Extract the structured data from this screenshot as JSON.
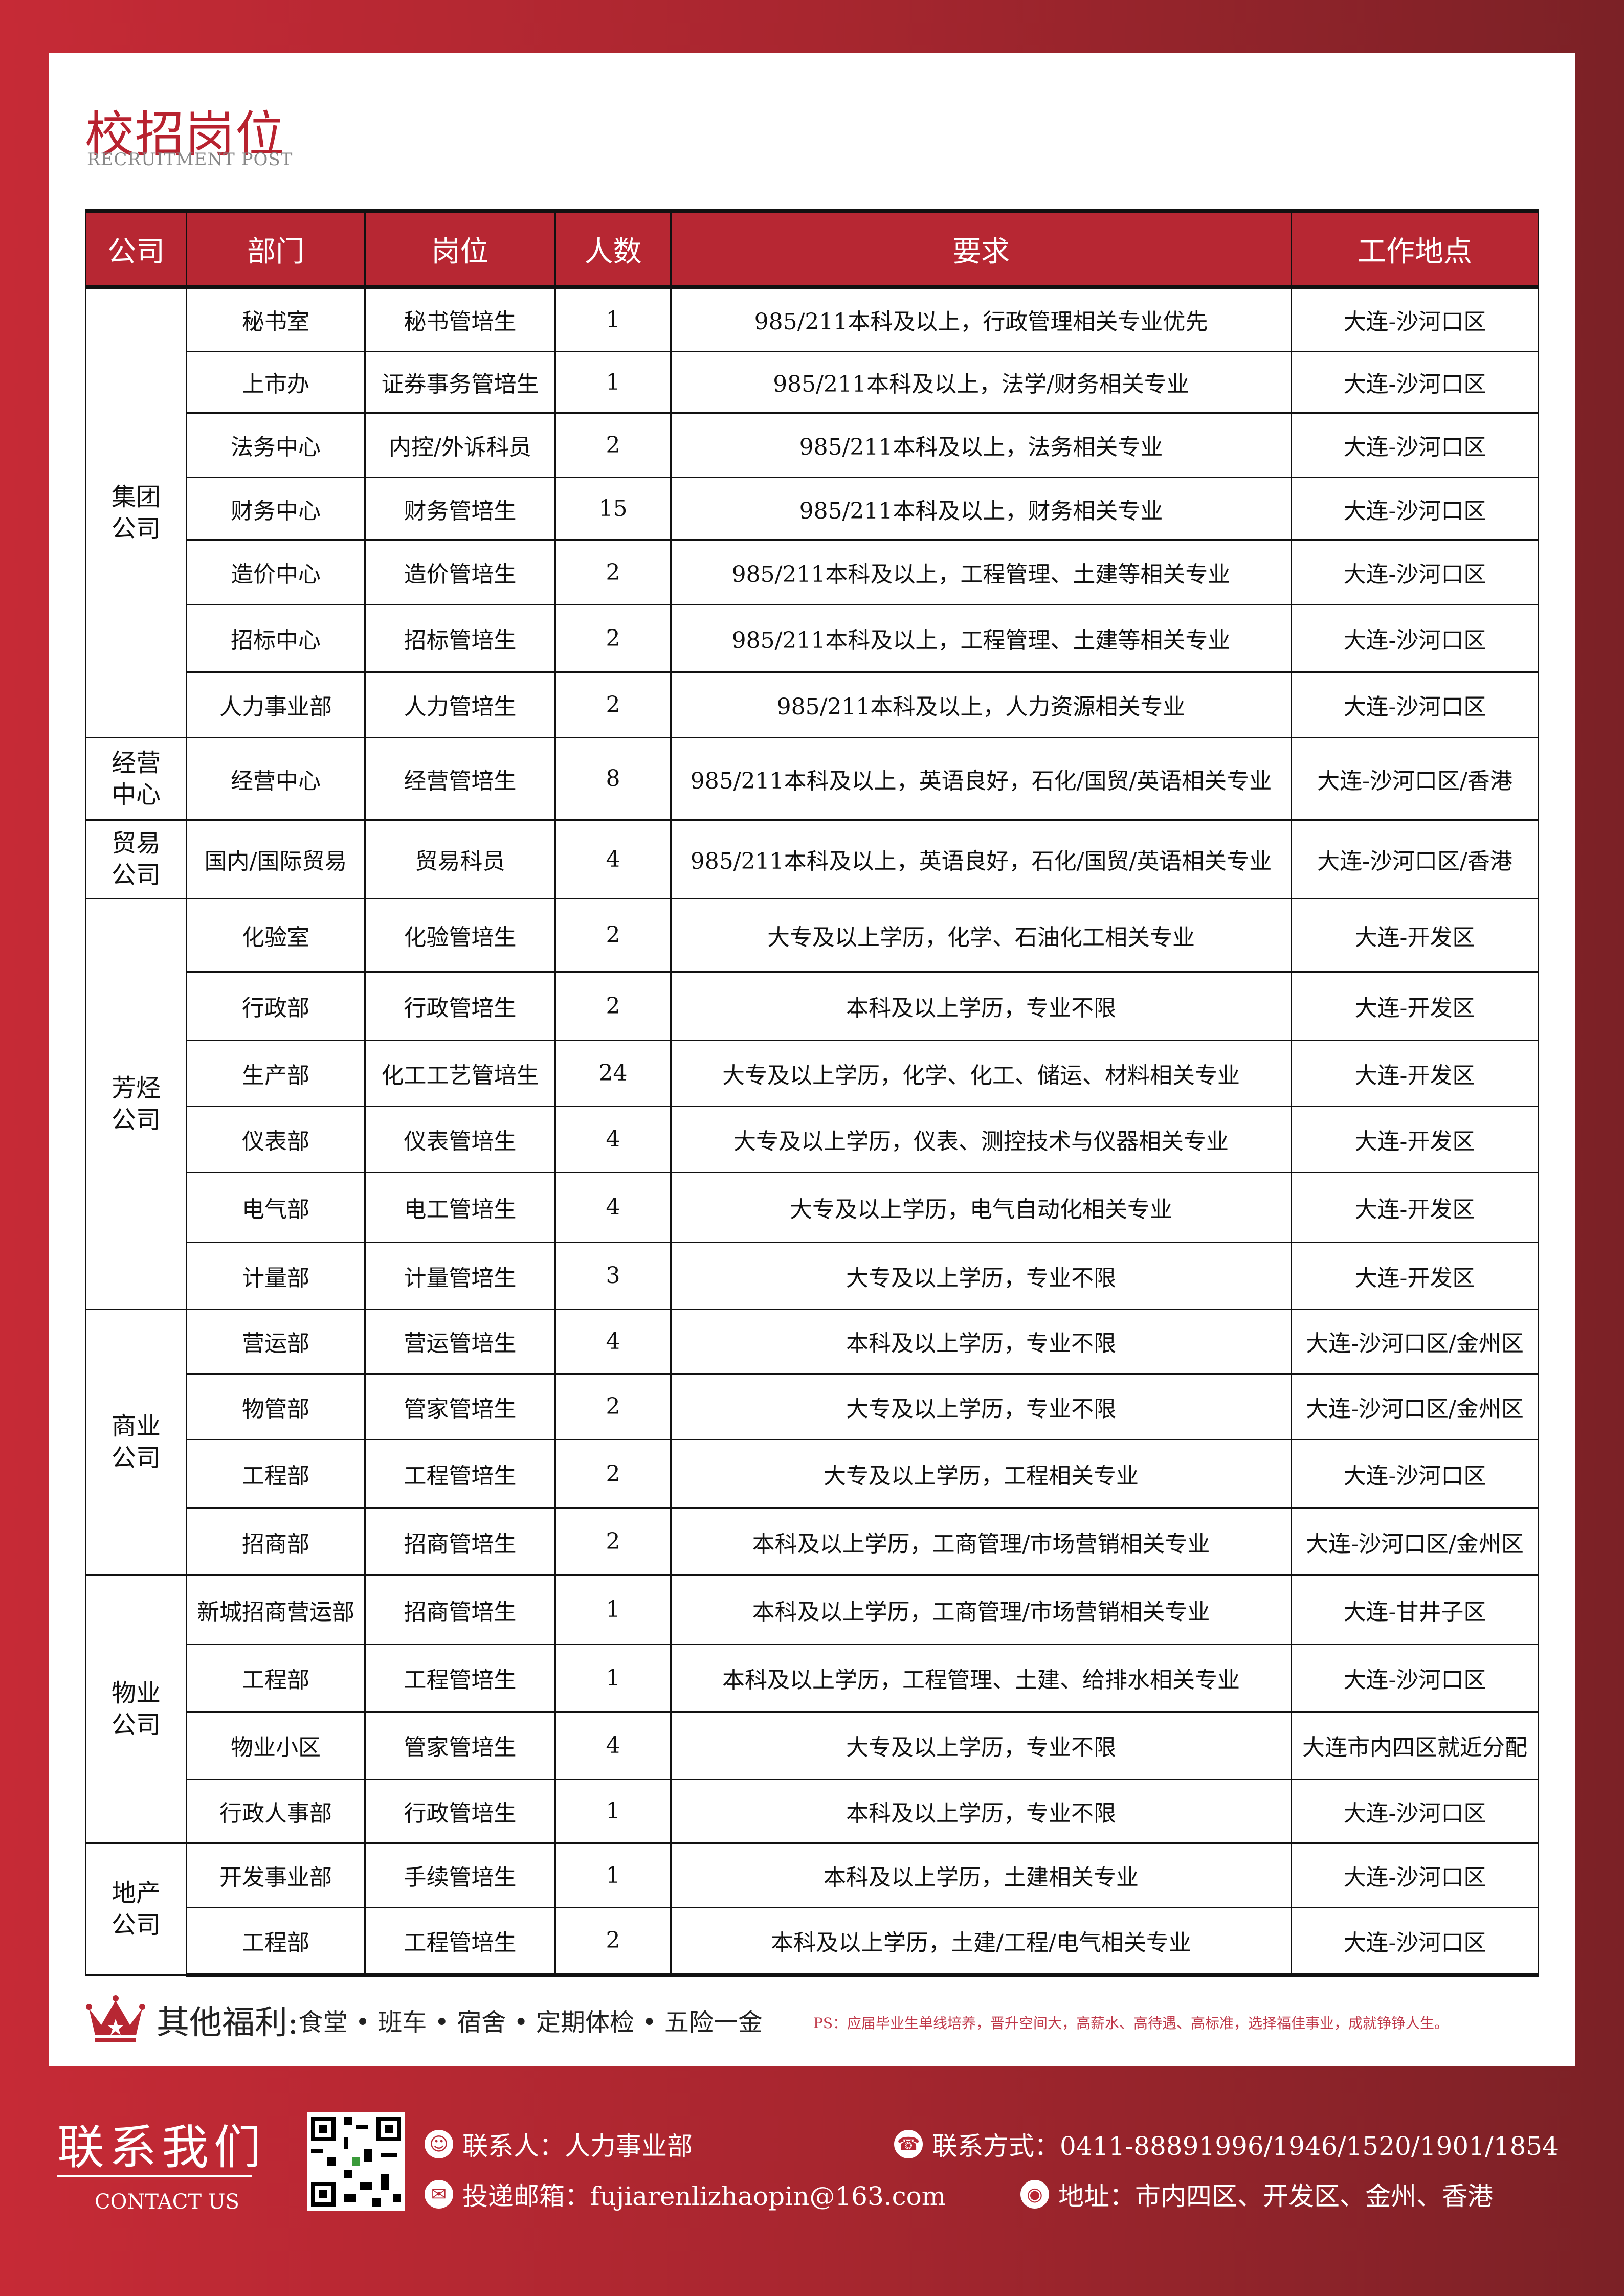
{
  "header": {
    "title": "校招岗位",
    "subtitle": "RECRUITMENT POST"
  },
  "colors": {
    "brand_red": "#b72733",
    "background_left": "#c62a36",
    "background_right": "#7b2126"
  },
  "table": {
    "headers": [
      "公司",
      "部门",
      "岗位",
      "人数",
      "要求",
      "工作地点"
    ],
    "groups": [
      {
        "company": "集团\n公司",
        "rows": [
          {
            "dept": "秘书室",
            "position": "秘书管培生",
            "count": "1",
            "requirement": "985/211本科及以上，行政管理相关专业优先",
            "location": "大连-沙河口区"
          },
          {
            "dept": "上市办",
            "position": "证券事务管培生",
            "count": "1",
            "requirement": "985/211本科及以上，法学/财务相关专业",
            "location": "大连-沙河口区"
          },
          {
            "dept": "法务中心",
            "position": "内控/外诉科员",
            "count": "2",
            "requirement": "985/211本科及以上，法务相关专业",
            "location": "大连-沙河口区"
          },
          {
            "dept": "财务中心",
            "position": "财务管培生",
            "count": "15",
            "requirement": "985/211本科及以上，财务相关专业",
            "location": "大连-沙河口区"
          },
          {
            "dept": "造价中心",
            "position": "造价管培生",
            "count": "2",
            "requirement": "985/211本科及以上，工程管理、土建等相关专业",
            "location": "大连-沙河口区"
          },
          {
            "dept": "招标中心",
            "position": "招标管培生",
            "count": "2",
            "requirement": "985/211本科及以上，工程管理、土建等相关专业",
            "location": "大连-沙河口区"
          },
          {
            "dept": "人力事业部",
            "position": "人力管培生",
            "count": "2",
            "requirement": "985/211本科及以上，人力资源相关专业",
            "location": "大连-沙河口区"
          }
        ]
      },
      {
        "company": "经营\n中心",
        "rows": [
          {
            "dept": "经营中心",
            "position": "经营管培生",
            "count": "8",
            "requirement": "985/211本科及以上，英语良好，石化/国贸/英语相关专业",
            "location": "大连-沙河口区/香港"
          }
        ]
      },
      {
        "company": "贸易\n公司",
        "rows": [
          {
            "dept": "国内/国际贸易",
            "position": "贸易科员",
            "count": "4",
            "requirement": "985/211本科及以上，英语良好，石化/国贸/英语相关专业",
            "location": "大连-沙河口区/香港"
          }
        ]
      },
      {
        "company": "芳烃\n公司",
        "rows": [
          {
            "dept": "化验室",
            "position": "化验管培生",
            "count": "2",
            "requirement": "大专及以上学历，化学、石油化工相关专业",
            "location": "大连-开发区"
          },
          {
            "dept": "行政部",
            "position": "行政管培生",
            "count": "2",
            "requirement": "本科及以上学历，专业不限",
            "location": "大连-开发区"
          },
          {
            "dept": "生产部",
            "position": "化工工艺管培生",
            "count": "24",
            "requirement": "大专及以上学历，化学、化工、储运、材料相关专业",
            "location": "大连-开发区"
          },
          {
            "dept": "仪表部",
            "position": "仪表管培生",
            "count": "4",
            "requirement": "大专及以上学历，仪表、测控技术与仪器相关专业",
            "location": "大连-开发区"
          },
          {
            "dept": "电气部",
            "position": "电工管培生",
            "count": "4",
            "requirement": "大专及以上学历，电气自动化相关专业",
            "location": "大连-开发区"
          },
          {
            "dept": "计量部",
            "position": "计量管培生",
            "count": "3",
            "requirement": "大专及以上学历，专业不限",
            "location": "大连-开发区"
          }
        ]
      },
      {
        "company": "商业\n公司",
        "rows": [
          {
            "dept": "营运部",
            "position": "营运管培生",
            "count": "4",
            "requirement": "本科及以上学历，专业不限",
            "location": "大连-沙河口区/金州区"
          },
          {
            "dept": "物管部",
            "position": "管家管培生",
            "count": "2",
            "requirement": "大专及以上学历，专业不限",
            "location": "大连-沙河口区/金州区"
          },
          {
            "dept": "工程部",
            "position": "工程管培生",
            "count": "2",
            "requirement": "大专及以上学历，工程相关专业",
            "location": "大连-沙河口区"
          },
          {
            "dept": "招商部",
            "position": "招商管培生",
            "count": "2",
            "requirement": "本科及以上学历，工商管理/市场营销相关专业",
            "location": "大连-沙河口区/金州区"
          }
        ]
      },
      {
        "company": "物业\n公司",
        "rows": [
          {
            "dept": "新城招商营运部",
            "position": "招商管培生",
            "count": "1",
            "requirement": "本科及以上学历，工商管理/市场营销相关专业",
            "location": "大连-甘井子区"
          },
          {
            "dept": "工程部",
            "position": "工程管培生",
            "count": "1",
            "requirement": "本科及以上学历，工程管理、土建、给排水相关专业",
            "location": "大连-沙河口区"
          },
          {
            "dept": "物业小区",
            "position": "管家管培生",
            "count": "4",
            "requirement": "大专及以上学历，专业不限",
            "location": "大连市内四区就近分配"
          },
          {
            "dept": "行政人事部",
            "position": "行政管培生",
            "count": "1",
            "requirement": "本科及以上学历，专业不限",
            "location": "大连-沙河口区"
          }
        ]
      },
      {
        "company": "地产\n公司",
        "rows": [
          {
            "dept": "开发事业部",
            "position": "手续管培生",
            "count": "1",
            "requirement": "本科及以上学历，土建相关专业",
            "location": "大连-沙河口区"
          },
          {
            "dept": "工程部",
            "position": "工程管培生",
            "count": "2",
            "requirement": "本科及以上学历，土建/工程/电气相关专业",
            "location": "大连-沙河口区"
          }
        ]
      }
    ]
  },
  "benefits": {
    "icon": "crown-icon",
    "title": "其他福利:",
    "items": "食堂 • 班车 • 宿舍 • 定期体检 • 五险一金",
    "ps": "PS：应届毕业生单线培养，晋升空间大，高薪水、高待遇、高标准，选择福佳事业，成就铮铮人生。"
  },
  "contact": {
    "title": "联系我们",
    "subtitle": "CONTACT US",
    "person": "联系人：人力事业部",
    "phone": "联系方式：0411-88891996/1946/1520/1901/1854",
    "email": "投递邮箱：fujiarenlizhaopin@163.com",
    "address": "地址：市内四区、开发区、金州、香港"
  }
}
